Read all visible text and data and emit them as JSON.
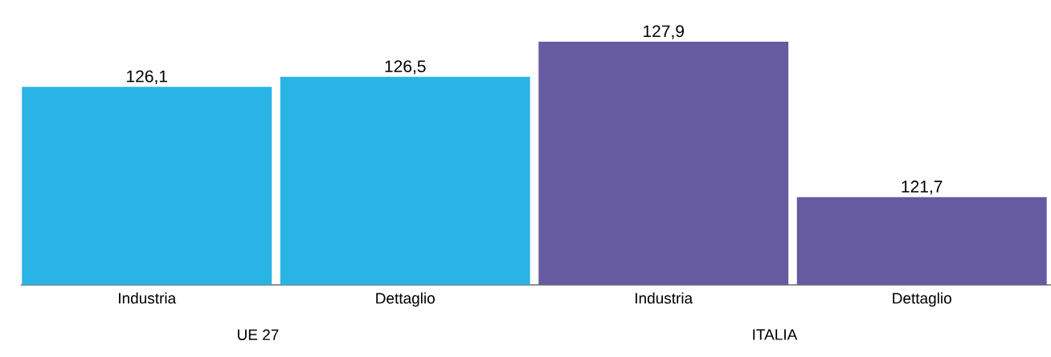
{
  "chart_data": {
    "type": "bar",
    "categories": [
      "Industria",
      "Dettaglio",
      "Industria",
      "Dettaglio"
    ],
    "values": [
      126.1,
      126.5,
      127.9,
      121.7
    ],
    "colors": [
      "#29b4e5",
      "#29b4e5",
      "#665aa0",
      "#665aa0"
    ],
    "value_labels": [
      "126,1",
      "126,5",
      "127,9",
      "121,7"
    ],
    "annotations": [
      "UE 27",
      "ITALIA"
    ],
    "ylim": [
      118.2,
      127.9
    ],
    "tick_labels": "x",
    "grid": false
  }
}
